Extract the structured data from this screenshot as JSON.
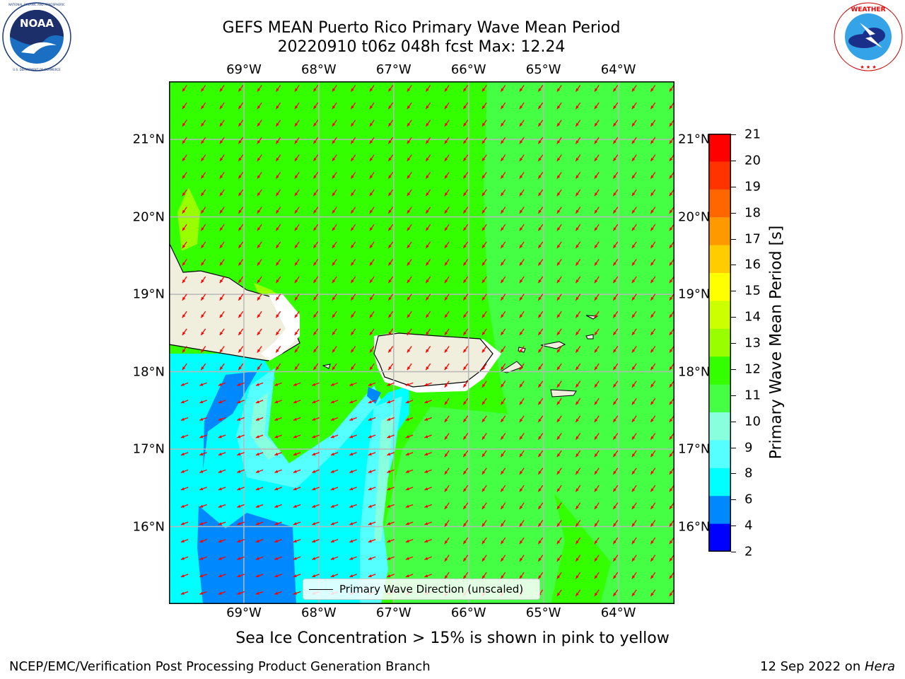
{
  "title": {
    "line1": "GEFS MEAN Puerto Rico Primary Wave Mean Period",
    "line2": "20220910 t06z 048h fcst   Max: 12.24"
  },
  "logos": {
    "left": {
      "name": "noaa-logo",
      "text": "NOAA",
      "ring_text": "NATIONAL OCEANIC AND ATMOSPHERIC ADMINISTRATION · U.S. DEPARTMENT OF COMMERCE"
    },
    "right": {
      "name": "nws-logo",
      "ring_text": "NATIONAL WEATHER SERVICE"
    }
  },
  "map": {
    "lon_labels": [
      "69°W",
      "68°W",
      "67°W",
      "66°W",
      "65°W",
      "64°W"
    ],
    "lat_labels": [
      "21°N",
      "20°N",
      "19°N",
      "18°N",
      "17°N",
      "16°N"
    ],
    "lon_range": [
      -70.0,
      -63.25
    ],
    "lat_range": [
      15.0,
      21.75
    ],
    "gridlines": true,
    "land_color": "#f0eedc",
    "vector_color": "#ff0000"
  },
  "colorbar": {
    "label": "Primary Wave Mean Period [s]",
    "ticks": [
      "21",
      "20",
      "19",
      "18",
      "17",
      "16",
      "15",
      "14",
      "13",
      "12",
      "11",
      "10",
      "9",
      "8",
      "6",
      "4",
      "2"
    ],
    "colors": [
      "#ff0000",
      "#ff3300",
      "#ff6600",
      "#ff9900",
      "#ffcc00",
      "#ffff00",
      "#ccff00",
      "#99ff00",
      "#33ff00",
      "#44ff44",
      "#88ffdd",
      "#55ffff",
      "#00ffff",
      "#0088ff",
      "#0000ff"
    ]
  },
  "legend": {
    "label": "Primary Wave Direction (unscaled)"
  },
  "footer": {
    "note": "Sea Ice Concentration > 15% is shown in pink to yellow",
    "left": "NCEP/EMC/Verification Post Processing Product Generation Branch",
    "right_date": "12 Sep 2022 on ",
    "right_host": "Hera"
  }
}
